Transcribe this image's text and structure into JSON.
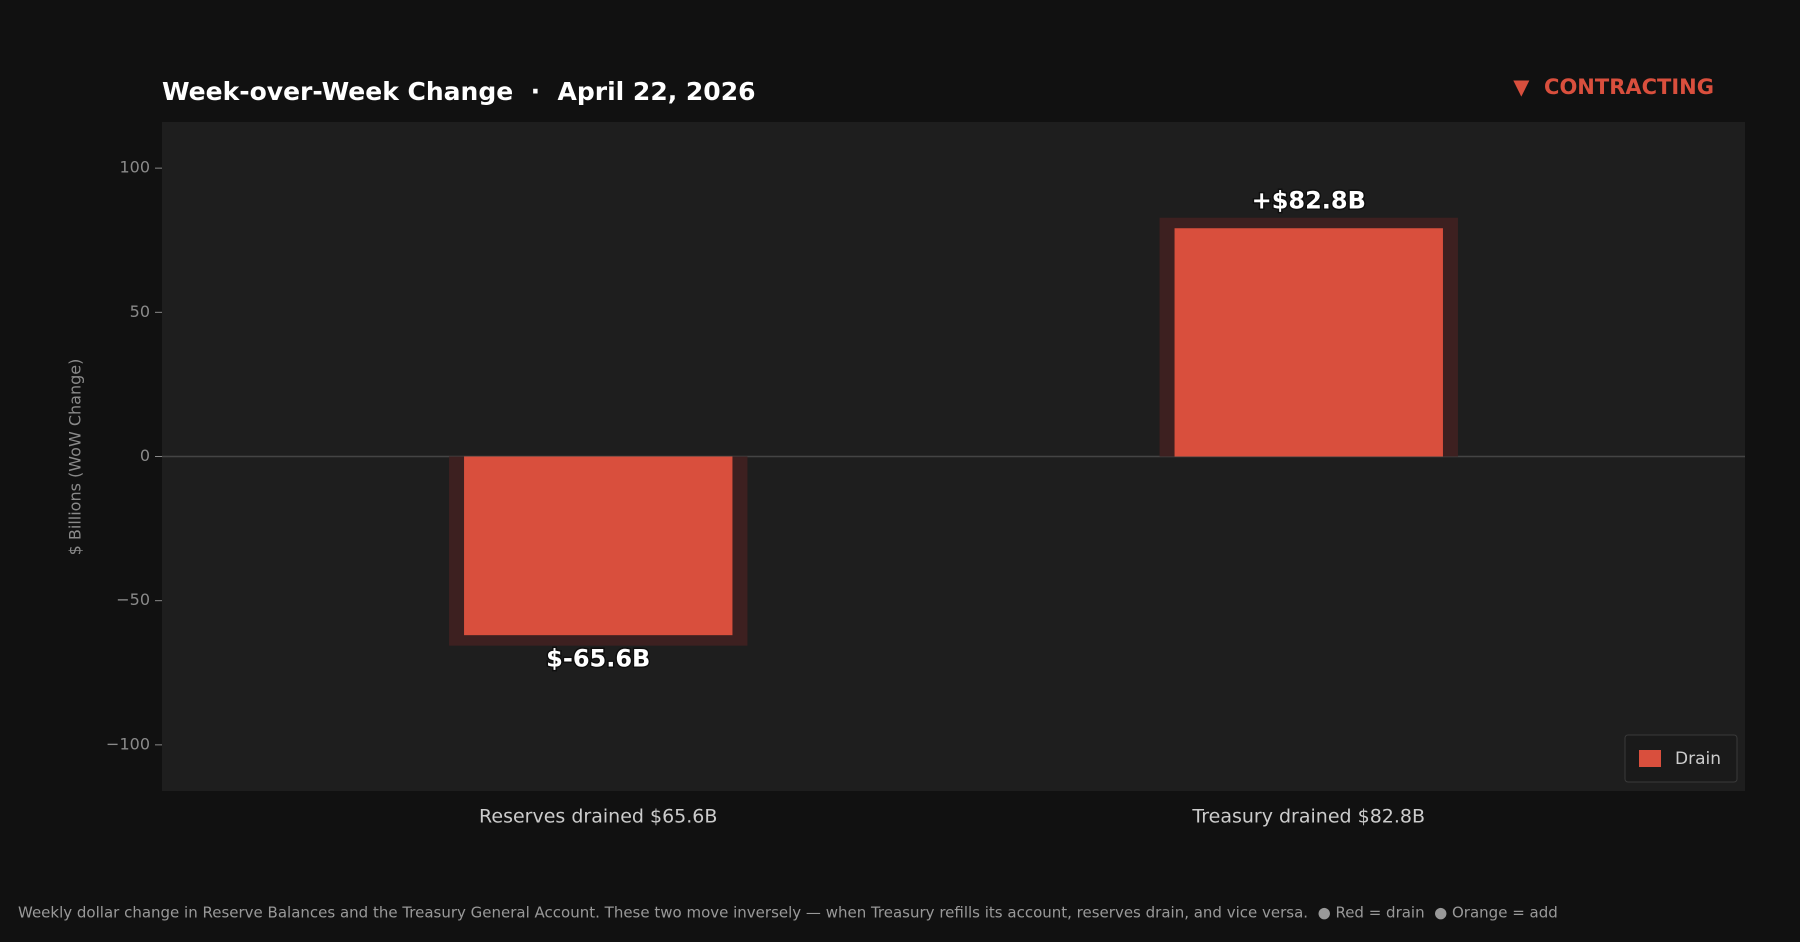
{
  "chart_data": {
    "type": "bar",
    "title": "Week-over-Week Change  ·  April 22, 2026",
    "annotation": "▼  CONTRACTING",
    "ylabel": "$ Billions (WoW Change)",
    "categories": [
      "Reserves drained $65.6B",
      "Treasury drained $82.8B"
    ],
    "series": [
      {
        "name": "Drain",
        "color": "#d94f3d",
        "values": [
          -65.6,
          82.8
        ],
        "value_labels": [
          "$-65.6B",
          "+$82.8B"
        ]
      }
    ],
    "ylim": [
      -116,
      116
    ],
    "yticks": [
      {
        "value": -100,
        "label": "−100"
      },
      {
        "value": -50,
        "label": "−50"
      },
      0,
      50,
      100
    ],
    "legend": "lower right",
    "footer": "Weekly dollar change in Reserve Balances and the Treasury General Account. These two move inversely — when Treasury refills its account, reserves drain, and vice versa.  ● Red = drain  ● Orange = add"
  }
}
